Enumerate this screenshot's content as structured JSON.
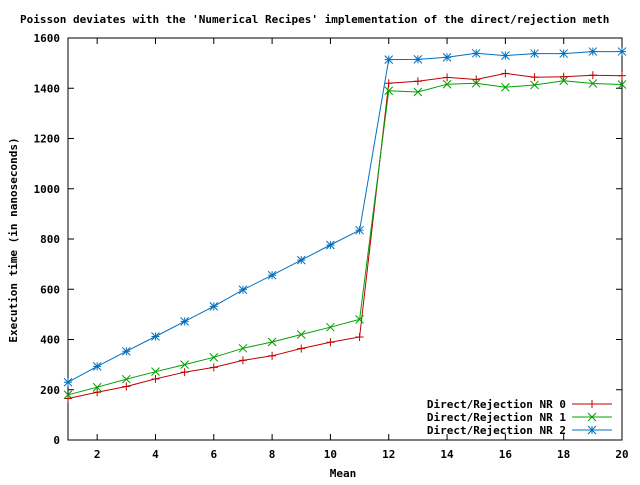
{
  "chart_data": {
    "type": "line",
    "title": "Poisson deviates with the 'Numerical Recipes' implementation of the direct/rejection meth",
    "xlabel": "Mean",
    "ylabel": "Execution time (in nanoseconds)",
    "xlim": [
      1,
      20
    ],
    "ylim": [
      0,
      1600
    ],
    "xticks": [
      "2",
      "4",
      "6",
      "8",
      "10",
      "12",
      "14",
      "16",
      "18",
      "20"
    ],
    "yticks": [
      "0",
      "200",
      "400",
      "600",
      "800",
      "1000",
      "1200",
      "1400",
      "1600"
    ],
    "grid": false,
    "legend_position": "bottom-right",
    "x": [
      1,
      2,
      3,
      4,
      5,
      6,
      7,
      8,
      9,
      10,
      11,
      12,
      13,
      14,
      15,
      16,
      17,
      18,
      19,
      20
    ],
    "series": [
      {
        "name": "Direct/Rejection NR 0",
        "color": "#c00000",
        "marker": "plus",
        "values": [
          165,
          190,
          213,
          243,
          270,
          289,
          317,
          335,
          364,
          389,
          410,
          1420,
          1428,
          1443,
          1435,
          1459,
          1444,
          1446,
          1452,
          1450
        ]
      },
      {
        "name": "Direct/Rejection NR 1",
        "color": "#00a000",
        "marker": "cross",
        "values": [
          180,
          210,
          242,
          272,
          300,
          329,
          365,
          390,
          420,
          449,
          480,
          1390,
          1385,
          1416,
          1420,
          1404,
          1413,
          1430,
          1419,
          1415
        ]
      },
      {
        "name": "Direct/Rejection NR 2",
        "color": "#0070c0",
        "marker": "star",
        "values": [
          230,
          293,
          353,
          412,
          472,
          532,
          598,
          656,
          716,
          776,
          835,
          1514,
          1515,
          1523,
          1539,
          1530,
          1538,
          1538,
          1546,
          1546
        ]
      }
    ]
  }
}
